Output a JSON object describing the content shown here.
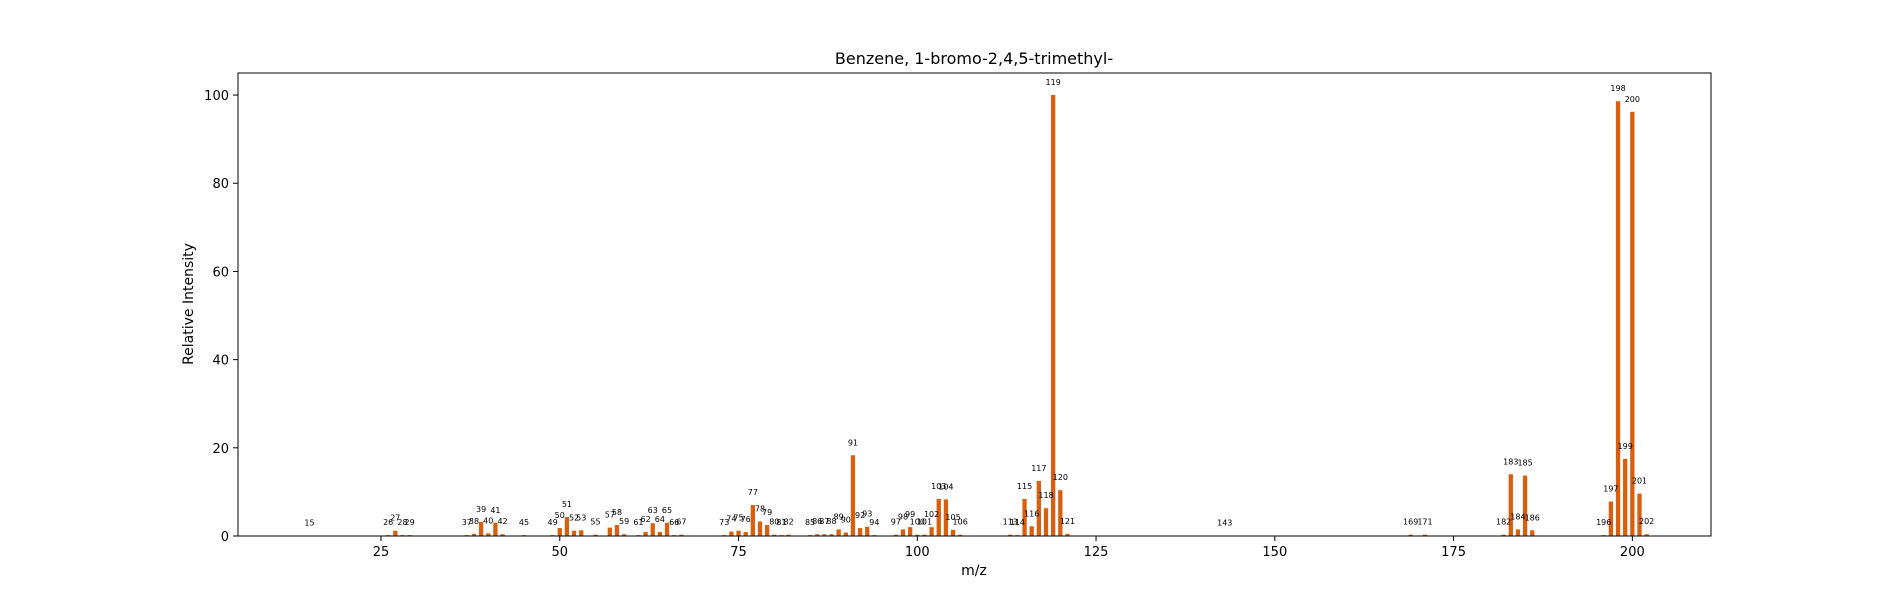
{
  "chart_data": {
    "type": "bar",
    "title": "Benzene, 1-bromo-2,4,5-trimethyl-",
    "xlabel": "m/z",
    "ylabel": "Relative Intensity",
    "xlim": [
      5,
      211
    ],
    "ylim": [
      0,
      105
    ],
    "xticks": [
      25,
      50,
      75,
      100,
      125,
      150,
      175,
      200
    ],
    "yticks": [
      0,
      20,
      40,
      60,
      80,
      100
    ],
    "bar_color": "#d95f0e",
    "grid": false,
    "peaks": [
      {
        "mz": 15,
        "intensity": 0.1
      },
      {
        "mz": 26,
        "intensity": 0.2
      },
      {
        "mz": 27,
        "intensity": 1.2
      },
      {
        "mz": 28,
        "intensity": 0.2
      },
      {
        "mz": 29,
        "intensity": 0.2
      },
      {
        "mz": 37,
        "intensity": 0.2
      },
      {
        "mz": 38,
        "intensity": 0.5
      },
      {
        "mz": 39,
        "intensity": 3.2
      },
      {
        "mz": 40,
        "intensity": 0.6
      },
      {
        "mz": 41,
        "intensity": 3.0
      },
      {
        "mz": 42,
        "intensity": 0.4
      },
      {
        "mz": 45,
        "intensity": 0.2
      },
      {
        "mz": 49,
        "intensity": 0.2
      },
      {
        "mz": 50,
        "intensity": 1.8
      },
      {
        "mz": 51,
        "intensity": 4.3
      },
      {
        "mz": 52,
        "intensity": 1.2
      },
      {
        "mz": 53,
        "intensity": 1.3
      },
      {
        "mz": 55,
        "intensity": 0.3
      },
      {
        "mz": 57,
        "intensity": 1.9
      },
      {
        "mz": 58,
        "intensity": 2.5
      },
      {
        "mz": 59,
        "intensity": 0.4
      },
      {
        "mz": 61,
        "intensity": 0.2
      },
      {
        "mz": 62,
        "intensity": 0.9
      },
      {
        "mz": 63,
        "intensity": 2.9
      },
      {
        "mz": 64,
        "intensity": 0.9
      },
      {
        "mz": 65,
        "intensity": 3.0
      },
      {
        "mz": 66,
        "intensity": 0.2
      },
      {
        "mz": 67,
        "intensity": 0.3
      },
      {
        "mz": 73,
        "intensity": 0.2
      },
      {
        "mz": 74,
        "intensity": 1.0
      },
      {
        "mz": 75,
        "intensity": 1.2
      },
      {
        "mz": 76,
        "intensity": 0.9
      },
      {
        "mz": 77,
        "intensity": 7.0
      },
      {
        "mz": 78,
        "intensity": 3.3
      },
      {
        "mz": 79,
        "intensity": 2.5
      },
      {
        "mz": 80,
        "intensity": 0.3
      },
      {
        "mz": 81,
        "intensity": 0.2
      },
      {
        "mz": 82,
        "intensity": 0.3
      },
      {
        "mz": 85,
        "intensity": 0.2
      },
      {
        "mz": 86,
        "intensity": 0.4
      },
      {
        "mz": 87,
        "intensity": 0.4
      },
      {
        "mz": 88,
        "intensity": 0.4
      },
      {
        "mz": 89,
        "intensity": 1.5
      },
      {
        "mz": 90,
        "intensity": 0.8
      },
      {
        "mz": 91,
        "intensity": 18.3
      },
      {
        "mz": 92,
        "intensity": 1.8
      },
      {
        "mz": 93,
        "intensity": 2.1
      },
      {
        "mz": 94,
        "intensity": 0.2
      },
      {
        "mz": 97,
        "intensity": 0.3
      },
      {
        "mz": 98,
        "intensity": 1.5
      },
      {
        "mz": 99,
        "intensity": 2.0
      },
      {
        "mz": 100,
        "intensity": 0.3
      },
      {
        "mz": 101,
        "intensity": 0.3
      },
      {
        "mz": 102,
        "intensity": 2.0
      },
      {
        "mz": 103,
        "intensity": 8.4
      },
      {
        "mz": 104,
        "intensity": 8.3
      },
      {
        "mz": 105,
        "intensity": 1.4
      },
      {
        "mz": 106,
        "intensity": 0.3
      },
      {
        "mz": 113,
        "intensity": 0.3
      },
      {
        "mz": 114,
        "intensity": 0.2
      },
      {
        "mz": 115,
        "intensity": 8.4
      },
      {
        "mz": 116,
        "intensity": 2.2
      },
      {
        "mz": 117,
        "intensity": 12.5
      },
      {
        "mz": 118,
        "intensity": 6.3
      },
      {
        "mz": 119,
        "intensity": 100.0
      },
      {
        "mz": 120,
        "intensity": 10.4
      },
      {
        "mz": 121,
        "intensity": 0.5
      },
      {
        "mz": 143,
        "intensity": 0.1
      },
      {
        "mz": 169,
        "intensity": 0.3
      },
      {
        "mz": 171,
        "intensity": 0.3
      },
      {
        "mz": 182,
        "intensity": 0.3
      },
      {
        "mz": 183,
        "intensity": 14.0
      },
      {
        "mz": 184,
        "intensity": 1.5
      },
      {
        "mz": 185,
        "intensity": 13.7
      },
      {
        "mz": 186,
        "intensity": 1.3
      },
      {
        "mz": 196,
        "intensity": 0.2
      },
      {
        "mz": 197,
        "intensity": 7.8
      },
      {
        "mz": 198,
        "intensity": 98.6
      },
      {
        "mz": 199,
        "intensity": 17.5
      },
      {
        "mz": 200,
        "intensity": 96.2
      },
      {
        "mz": 201,
        "intensity": 9.6
      },
      {
        "mz": 202,
        "intensity": 0.4
      }
    ]
  }
}
